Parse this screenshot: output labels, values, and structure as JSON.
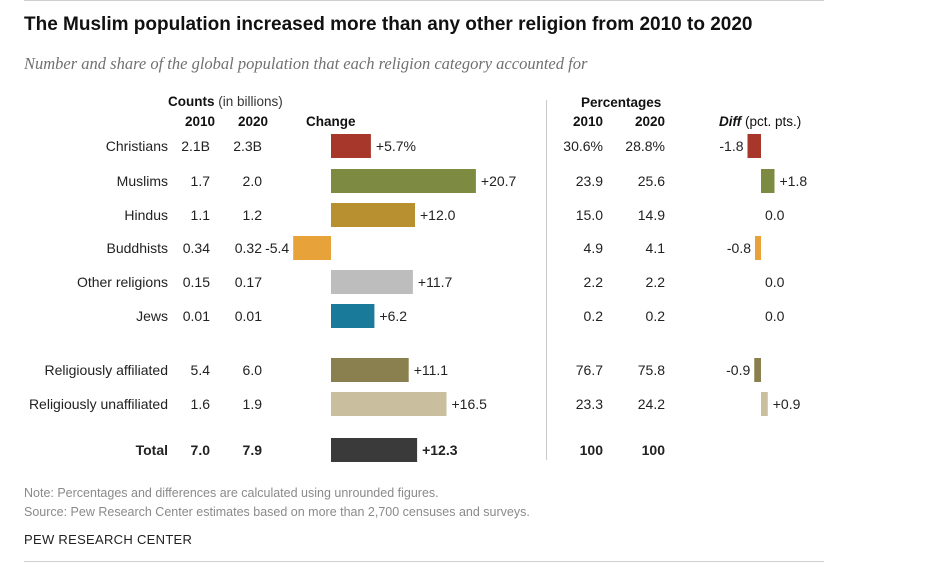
{
  "title": "The Muslim population increased more than any other religion from 2010 to 2020",
  "subtitle": "Number and share of the global population that each religion category accounted for",
  "headers": {
    "counts_bold": "Counts",
    "counts_unit": "(in billions)",
    "y2010": "2010",
    "y2020": "2020",
    "change": "Change",
    "percentages": "Percentages",
    "p2010": "2010",
    "p2020": "2020",
    "diff_bold": "Diff",
    "diff_unit": "(pct. pts.)"
  },
  "rows": [
    {
      "label": "Christians",
      "c2010": "2.1B",
      "c2020": "2.3B",
      "p2010": "30.6%",
      "p2020": "28.8%"
    },
    {
      "label": "Muslims",
      "c2010": "1.7",
      "c2020": "2.0",
      "p2010": "23.9",
      "p2020": "25.6"
    },
    {
      "label": "Hindus",
      "c2010": "1.1",
      "c2020": "1.2",
      "p2010": "15.0",
      "p2020": "14.9"
    },
    {
      "label": "Buddhists",
      "c2010": "0.34",
      "c2020": "0.32",
      "p2010": "4.9",
      "p2020": "4.1"
    },
    {
      "label": "Other religions",
      "c2010": "0.15",
      "c2020": "0.17",
      "p2010": "2.2",
      "p2020": "2.2"
    },
    {
      "label": "Jews",
      "c2010": "0.01",
      "c2020": "0.01",
      "p2010": "0.2",
      "p2020": "0.2"
    },
    {
      "label": "Religiously affiliated",
      "c2010": "5.4",
      "c2020": "6.0",
      "p2010": "76.7",
      "p2020": "75.8"
    },
    {
      "label": "Religiously unaffiliated",
      "c2010": "1.6",
      "c2020": "1.9",
      "p2010": "23.3",
      "p2020": "24.2"
    },
    {
      "label": "Total",
      "c2010": "7.0",
      "c2020": "7.9",
      "p2010": "100",
      "p2020": "100"
    }
  ],
  "chart_data": [
    {
      "type": "bar",
      "title": "Change",
      "categories": [
        "Christians",
        "Muslims",
        "Hindus",
        "Buddhists",
        "Other religions",
        "Jews",
        "Religiously affiliated",
        "Religiously unaffiliated",
        "Total"
      ],
      "values": [
        5.7,
        20.7,
        12.0,
        -5.4,
        11.7,
        6.2,
        11.1,
        16.5,
        12.3
      ],
      "labels": [
        "+5.7%",
        "+20.7",
        "+12.0",
        "-5.4",
        "+11.7",
        "+6.2",
        "+11.1",
        "+16.5",
        "+12.3"
      ],
      "colors": [
        "#a7372a",
        "#7d8a42",
        "#b8902f",
        "#e8a23a",
        "#bdbdbd",
        "#1a7a9a",
        "#8a7f4e",
        "#c9bf9f",
        "#3a3a3a"
      ],
      "orientation": "horizontal"
    },
    {
      "type": "bar",
      "title": "Diff (pct. pts.)",
      "categories": [
        "Christians",
        "Muslims",
        "Hindus",
        "Buddhists",
        "Other religions",
        "Jews",
        "Religiously affiliated",
        "Religiously unaffiliated"
      ],
      "values": [
        -1.8,
        1.8,
        0.0,
        -0.8,
        0.0,
        0.0,
        -0.9,
        0.9
      ],
      "labels": [
        "-1.8",
        "+1.8",
        "0.0",
        "-0.8",
        "0.0",
        "0.0",
        "-0.9",
        "+0.9"
      ],
      "colors": [
        "#a7372a",
        "#7d8a42",
        "#b8902f",
        "#e8a23a",
        "#bdbdbd",
        "#1a7a9a",
        "#8a7f4e",
        "#c9bf9f"
      ],
      "orientation": "horizontal"
    }
  ],
  "note": "Note: Percentages and differences are calculated using unrounded figures.",
  "source": "Source: Pew Research Center estimates based on more than 2,700 censuses and surveys.",
  "brand": "PEW RESEARCH CENTER"
}
